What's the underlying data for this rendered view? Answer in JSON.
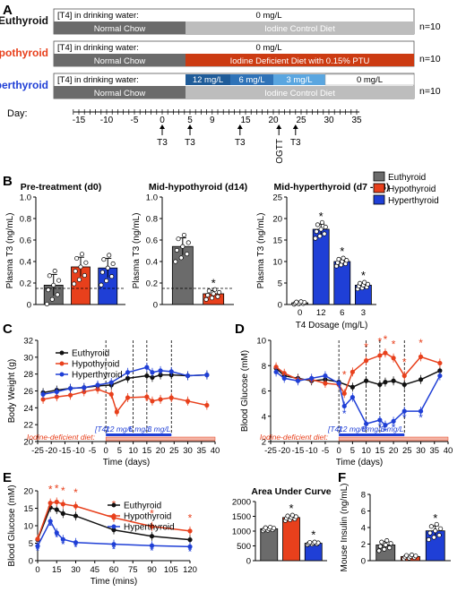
{
  "panels": {
    "A": "A",
    "B": "B",
    "C": "C",
    "D": "D",
    "E": "E",
    "F": "F"
  },
  "colors": {
    "euthyroid": "#111111",
    "hypothyroid": "#e8401c",
    "hyperthyroid": "#1f3fd6",
    "chow": "#6b6b6b",
    "control": "#bdbdbd",
    "deficient": "#cc3b12",
    "t4_12": "#1f5c99",
    "t4_6": "#2f73b8",
    "t4_3": "#5aa6e0"
  },
  "schematic": {
    "rows": [
      {
        "name": "Euthyroid",
        "water_label": "[T4] in drinking water:",
        "water_value": "0 mg/L",
        "chow": "Normal Chow",
        "diet": "Iodine Control Diet",
        "n": "n=10"
      },
      {
        "name": "Hypothyroid",
        "water_label": "[T4] in drinking water:",
        "water_value": "0 mg/L",
        "chow": "Normal Chow",
        "diet": "Iodine Deficient Diet with 0.15% PTU",
        "n": "n=10"
      },
      {
        "name": "Hyperthyroid",
        "water_label": "[T4] in drinking water:",
        "doses": [
          "12 mg/L",
          "6 mg/L",
          "3 mg/L",
          "0 mg/L"
        ],
        "chow": "Normal Chow",
        "diet": "Iodine Control Diet",
        "n": "n=10"
      }
    ],
    "day_label": "Day:",
    "day_ticks": [
      "-15",
      "-10",
      "-5",
      "0",
      "5",
      "9",
      "15",
      "20",
      "25",
      "30",
      "35"
    ],
    "events": [
      {
        "label": "T3",
        "day": 0
      },
      {
        "label": "T3",
        "day": 5
      },
      {
        "label": "T3",
        "day": 14
      },
      {
        "label": "OGTT",
        "day": 21
      },
      {
        "label": "T3",
        "day": 24
      }
    ]
  },
  "chart_data": [
    {
      "id": "B1",
      "type": "bar",
      "title": "Pre-treatment (d0)",
      "ylabel": "Plasma T3 (ng/mL)",
      "categories": [
        "Euthyroid",
        "Hypothyroid",
        "Hyperthyroid"
      ],
      "values": [
        0.18,
        0.35,
        0.34
      ],
      "errors": [
        0.1,
        0.09,
        0.09
      ],
      "ylim": [
        0,
        1.0
      ],
      "yticks": [
        "0",
        "0.2",
        "0.4",
        "0.6",
        "0.8",
        "1.0"
      ],
      "dashed_line": 0.15
    },
    {
      "id": "B2",
      "type": "bar",
      "title": "Mid-hypothyroid (d14)",
      "ylabel": "Plasma T3 (ng/mL)",
      "categories": [
        "Euthyroid",
        "Hypothyroid"
      ],
      "values": [
        0.54,
        0.1
      ],
      "errors": [
        0.08,
        0.03
      ],
      "ylim": [
        0,
        1.0
      ],
      "yticks": [
        "0",
        "0.2",
        "0.4",
        "0.6",
        "0.8",
        "1.0"
      ],
      "dashed_line": 0.15,
      "significance": [
        "",
        "*"
      ]
    },
    {
      "id": "B3",
      "type": "bar",
      "title": "Mid-hyperthyroid (d7 - 24)",
      "ylabel": "Plasma T3 (ng/mL)",
      "xlabel": "T4 Dosage (mg/L)",
      "categories": [
        "0",
        "12",
        "6",
        "3"
      ],
      "values": [
        0.4,
        17.5,
        10,
        4.5
      ],
      "errors": [
        0.2,
        1.2,
        0.6,
        0.5
      ],
      "ylim": [
        0,
        25
      ],
      "yticks": [
        "0",
        "5",
        "10",
        "15",
        "20",
        "25"
      ],
      "significance": [
        "",
        "*",
        "*",
        "*"
      ],
      "legend": [
        "Euthyroid",
        "Hypothyroid",
        "Hyperthyroid"
      ]
    },
    {
      "id": "C",
      "type": "line",
      "ylabel": "Body Weight (g)",
      "xlabel": "Time (days)",
      "xlim": [
        -25,
        40
      ],
      "ylim": [
        20,
        32
      ],
      "xticks": [
        "-25",
        "-20",
        "-15",
        "-10",
        "-5",
        "0",
        "5",
        "10",
        "15",
        "20",
        "25",
        "30",
        "35",
        "40"
      ],
      "yticks": [
        "20",
        "22",
        "24",
        "26",
        "28",
        "30",
        "32"
      ],
      "series": [
        {
          "name": "Euthyroid",
          "x": [
            -23,
            -18,
            -13,
            -8,
            -3,
            2,
            8,
            15,
            17,
            20,
            24,
            30,
            37
          ],
          "y": [
            25.8,
            26.1,
            26.3,
            26.4,
            26.6,
            26.7,
            27.5,
            27.8,
            27.6,
            27.9,
            27.9,
            27.8,
            27.9
          ]
        },
        {
          "name": "Hypothyroid",
          "x": [
            -23,
            -18,
            -13,
            -8,
            -3,
            2,
            4,
            8,
            15,
            17,
            20,
            24,
            30,
            37
          ],
          "y": [
            25.0,
            25.3,
            25.5,
            25.9,
            26.2,
            25.6,
            23.5,
            25.2,
            25.3,
            24.8,
            25.0,
            25.2,
            24.8,
            24.3
          ]
        },
        {
          "name": "Hyperthyroid",
          "x": [
            -23,
            -18,
            -13,
            -8,
            -3,
            2,
            8,
            15,
            17,
            20,
            24,
            30,
            37
          ],
          "y": [
            25.6,
            25.9,
            26.3,
            26.4,
            26.7,
            27.0,
            28.2,
            28.8,
            28.2,
            28.4,
            28.3,
            27.8,
            27.9
          ]
        }
      ],
      "annotations": {
        "t4": "[T4]:",
        "t4_doses": [
          "12 mg/L",
          "6 mg/L",
          "3 mg/L"
        ],
        "diet": "Iodine-deficient diet:"
      }
    },
    {
      "id": "D",
      "type": "line",
      "ylabel": "Blood Glucose (mM)",
      "xlabel": "Time (days)",
      "xlim": [
        -25,
        40
      ],
      "ylim": [
        2,
        10
      ],
      "xticks": [
        "-25",
        "-20",
        "-15",
        "-10",
        "-5",
        "0",
        "5",
        "10",
        "15",
        "20",
        "25",
        "30",
        "35",
        "40"
      ],
      "yticks": [
        "2",
        "4",
        "6",
        "8",
        "10"
      ],
      "series": [
        {
          "name": "Euthyroid",
          "x": [
            -23,
            -20,
            -15,
            -10,
            -5,
            0,
            5,
            10,
            15,
            17,
            20,
            24,
            30,
            37
          ],
          "y": [
            7.8,
            7.2,
            7.0,
            6.8,
            6.9,
            6.7,
            6.3,
            6.8,
            6.5,
            6.7,
            6.8,
            6.5,
            6.9,
            7.6
          ]
        },
        {
          "name": "Hypothyroid",
          "x": [
            -23,
            -20,
            -15,
            -10,
            -5,
            0,
            2,
            5,
            10,
            15,
            17,
            20,
            24,
            30,
            37
          ],
          "y": [
            7.9,
            7.4,
            6.9,
            6.9,
            6.6,
            6.5,
            5.8,
            7.5,
            8.4,
            8.8,
            9.0,
            8.6,
            7.2,
            8.7,
            8.2
          ]
        },
        {
          "name": "Hyperthyroid",
          "x": [
            -23,
            -20,
            -15,
            -10,
            -5,
            0,
            2,
            5,
            10,
            15,
            17,
            20,
            24,
            30,
            37
          ],
          "y": [
            7.5,
            7.0,
            6.8,
            7.0,
            7.2,
            6.6,
            4.8,
            5.5,
            3.4,
            3.7,
            3.3,
            3.6,
            4.4,
            4.4,
            7.2
          ]
        }
      ]
    },
    {
      "id": "E1",
      "type": "line",
      "ylabel": "Blood Glucose (mM)",
      "xlabel": "Time (mins)",
      "xlim": [
        0,
        120
      ],
      "ylim": [
        0,
        20
      ],
      "xticks": [
        "0",
        "15",
        "30",
        "45",
        "60",
        "75",
        "90",
        "105",
        "120"
      ],
      "yticks": [
        "0",
        "5",
        "10",
        "15",
        "20"
      ],
      "series": [
        {
          "name": "Euthyroid",
          "x": [
            0,
            10,
            15,
            20,
            30,
            60,
            90,
            120
          ],
          "y": [
            6.0,
            15.2,
            14.6,
            13.5,
            12.8,
            8.8,
            7.0,
            6.0
          ]
        },
        {
          "name": "Hypothyroid",
          "x": [
            0,
            10,
            15,
            20,
            30,
            60,
            90,
            120
          ],
          "y": [
            6.2,
            16.5,
            16.8,
            16.2,
            15.6,
            12.3,
            9.8,
            8.5
          ]
        },
        {
          "name": "Hyperthyroid",
          "x": [
            0,
            10,
            15,
            20,
            30,
            60,
            90,
            120
          ],
          "y": [
            4.2,
            11.3,
            8.0,
            6.1,
            5.2,
            4.7,
            4.3,
            4.0
          ]
        }
      ]
    },
    {
      "id": "E2",
      "type": "bar",
      "title": "Area Under Curve",
      "categories": [
        "Euthyroid",
        "Hypothyroid",
        "Hyperthyroid"
      ],
      "values": [
        1080,
        1460,
        590
      ],
      "errors": [
        40,
        60,
        30
      ],
      "ylim": [
        0,
        2000
      ],
      "yticks": [
        "0",
        "500",
        "1000",
        "1500",
        "2000"
      ],
      "significance": [
        "",
        "*",
        "*"
      ]
    },
    {
      "id": "F",
      "type": "bar",
      "ylabel": "Mouse Insulin (ng/mL)",
      "categories": [
        "Euthyroid",
        "Hypothyroid",
        "Hyperthyroid"
      ],
      "values": [
        1.9,
        0.5,
        3.6
      ],
      "errors": [
        0.4,
        0.15,
        0.6
      ],
      "ylim": [
        0,
        8
      ],
      "yticks": [
        "0",
        "2",
        "4",
        "6",
        "8"
      ],
      "significance": [
        "",
        "",
        "*"
      ]
    }
  ]
}
